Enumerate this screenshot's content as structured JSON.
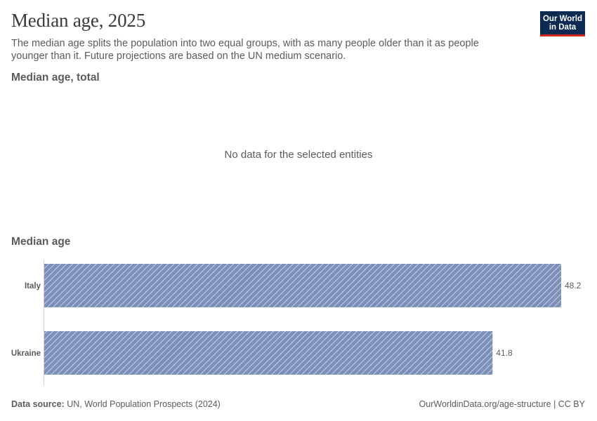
{
  "header": {
    "title": "Median age, 2025",
    "subtitle": "The median age splits the population into two equal groups, with as many people older than it as people younger than it. Future projections are based on the UN medium scenario.",
    "logo_line1": "Our World",
    "logo_line2": "in Data"
  },
  "panel_total": {
    "title": "Median age, total",
    "no_data_text": "No data for the selected entities"
  },
  "panel_median": {
    "title": "Median age"
  },
  "chart_data": {
    "type": "bar",
    "orientation": "horizontal",
    "categories": [
      "Italy",
      "Ukraine"
    ],
    "values": [
      48.2,
      41.8
    ],
    "value_labels": [
      "48.2",
      "41.8"
    ],
    "xlim": [
      0,
      48.2
    ],
    "grid": false,
    "bar_color": "#7b8fb8",
    "hatch_color": "#ffffff"
  },
  "footer": {
    "source_label": "Data source:",
    "source_text": "UN, World Population Prospects (2024)",
    "url_text": "OurWorldinData.org/age-structure | CC BY"
  }
}
